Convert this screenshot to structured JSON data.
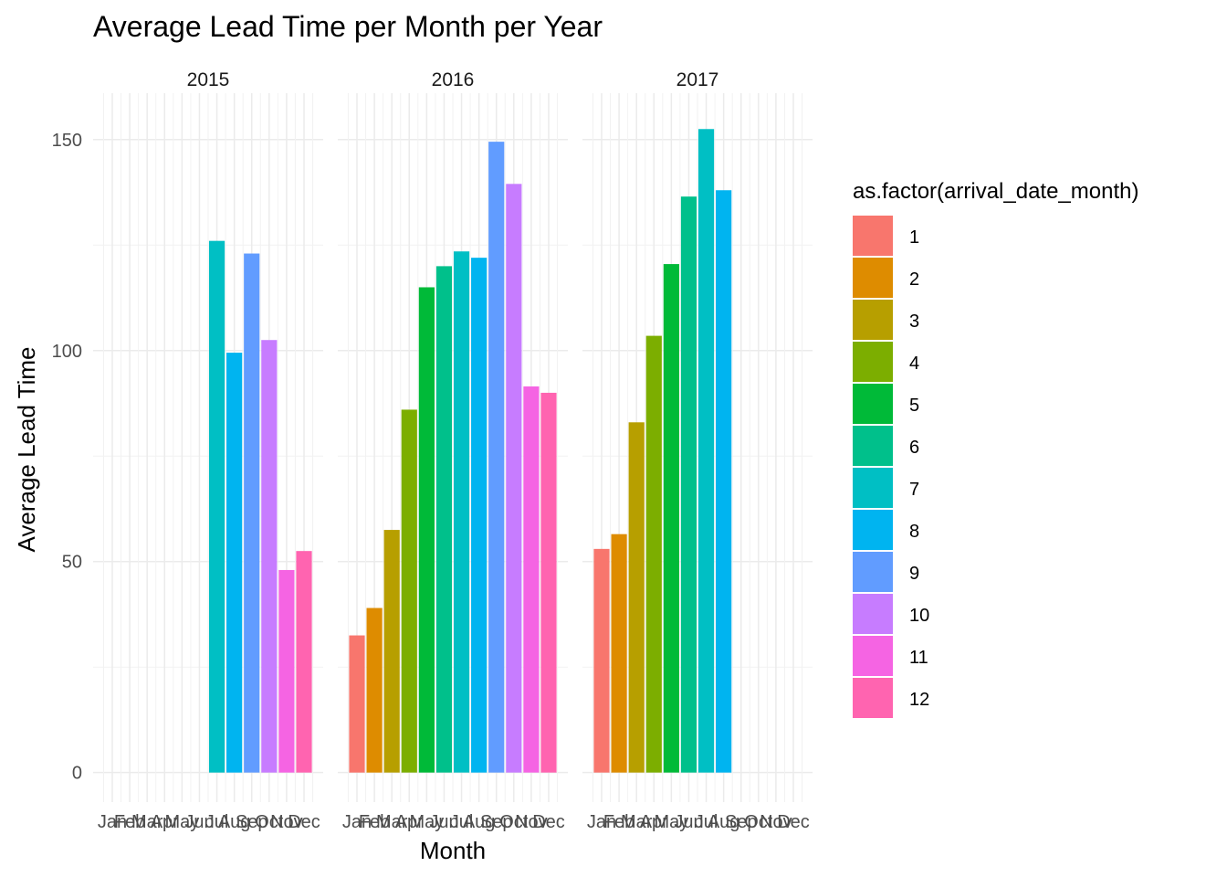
{
  "chart_data": {
    "type": "bar",
    "title": "Average Lead Time per Month per Year",
    "xlabel": "Month",
    "ylabel": "Average Lead Time",
    "categories": [
      "Jan",
      "Feb",
      "Mar",
      "Apr",
      "May",
      "Jun",
      "Jul",
      "Aug",
      "Sep",
      "Oct",
      "Nov",
      "Dec"
    ],
    "ylim": [
      -7,
      161
    ],
    "yticks": [
      0,
      50,
      100,
      150
    ],
    "grid": true,
    "legend": {
      "title": "as.factor(arrival_date_month)",
      "placement": "right",
      "entries": [
        "1",
        "2",
        "3",
        "4",
        "5",
        "6",
        "7",
        "8",
        "9",
        "10",
        "11",
        "12"
      ]
    },
    "colors": [
      "#F8766D",
      "#DE8C00",
      "#B79F00",
      "#7CAE00",
      "#00BA38",
      "#00C08B",
      "#00BFC4",
      "#00B4F0",
      "#619CFF",
      "#C77CFF",
      "#F564E3",
      "#FF64B0"
    ],
    "panels": [
      {
        "name": "2015",
        "values": [
          null,
          null,
          null,
          null,
          null,
          null,
          126,
          99.5,
          123,
          102.5,
          48,
          52.5
        ]
      },
      {
        "name": "2016",
        "values": [
          32.5,
          39,
          57.5,
          86,
          115,
          120,
          123.5,
          122,
          149.5,
          139.5,
          91.5,
          90
        ]
      },
      {
        "name": "2017",
        "values": [
          53,
          56.5,
          83,
          103.5,
          120.5,
          136.5,
          152.5,
          138,
          null,
          null,
          null,
          null
        ]
      }
    ]
  }
}
